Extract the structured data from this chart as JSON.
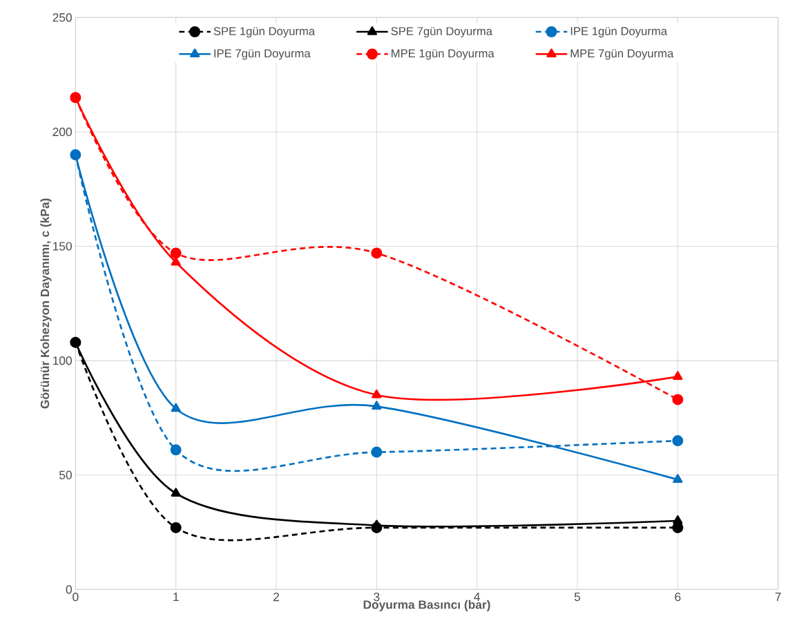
{
  "chart_data": {
    "type": "line",
    "xlabel": "Doyurma Basıncı (bar)",
    "ylabel": "Görünür Kohezyon Dayanımı, c (kPa)",
    "x": [
      0,
      1,
      3,
      6
    ],
    "series": [
      {
        "name": "SPE 1gün Doyurma",
        "color": "#000000",
        "marker": "circle",
        "line_style": "dashed",
        "values": [
          108,
          27,
          27,
          27
        ]
      },
      {
        "name": "SPE 7gün Doyurma",
        "color": "#000000",
        "marker": "triangle",
        "line_style": "solid",
        "values": [
          108,
          42,
          28,
          30
        ]
      },
      {
        "name": "IPE 1gün Doyurma",
        "color": "#0070c0",
        "marker": "circle",
        "line_style": "dashed",
        "values": [
          190,
          61,
          60,
          65
        ]
      },
      {
        "name": "IPE 7gün Doyurma",
        "color": "#0070c0",
        "marker": "triangle",
        "line_style": "solid",
        "values": [
          190,
          79,
          80,
          48
        ]
      },
      {
        "name": "MPE 1gün Doyurma",
        "color": "#ff0000",
        "marker": "circle",
        "line_style": "dashed",
        "values": [
          215,
          147,
          147,
          83
        ]
      },
      {
        "name": "MPE 7gün Doyurma",
        "color": "#ff0000",
        "marker": "triangle",
        "line_style": "solid",
        "values": [
          215,
          143,
          85,
          93
        ]
      }
    ],
    "xlim": [
      0,
      7
    ],
    "ylim": [
      0,
      250
    ],
    "xticks": [
      0,
      1,
      2,
      3,
      4,
      5,
      6,
      7
    ],
    "yticks": [
      0,
      50,
      100,
      150,
      200,
      250
    ],
    "grid": true,
    "legend": "top"
  }
}
